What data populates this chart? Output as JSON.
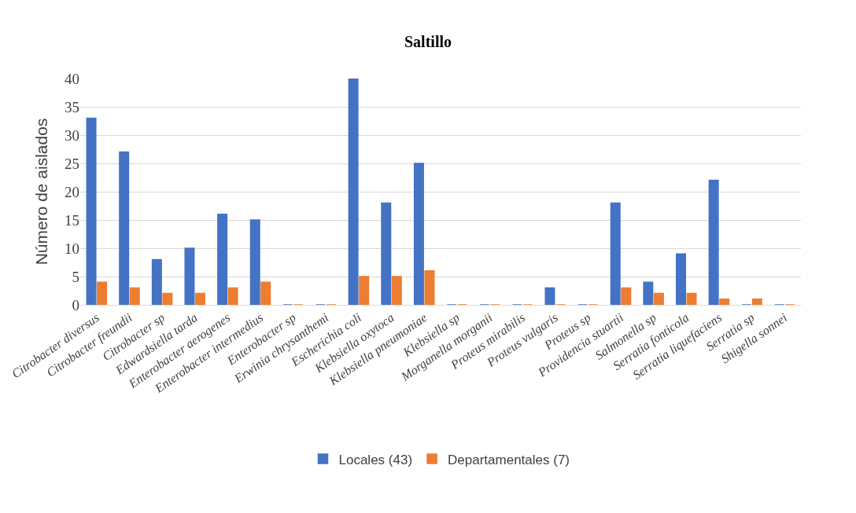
{
  "chart_data": {
    "type": "bar",
    "title": "Saltillo",
    "ylabel": "Número de aislados",
    "categories": [
      "Citrobacter diversus",
      "Citrobacter freundii",
      "Citrobacter sp",
      "Edwardsiella tarda",
      "Enterobacter aerogenes",
      "Enterobacter intermedius",
      "Enterobacter sp",
      "Erwinia chrysanthemi",
      "Escherichia coli",
      "Klebsiella oxytoca",
      "Klebsiella pneumoniae",
      "Klebsiella sp",
      "Morganella morganii",
      "Proteus mirabilis",
      "Proteus vulgaris",
      "Proteus sp",
      "Providencia stuartii",
      "Salmonella sp",
      "Serratia fonticola",
      "Serratia liquefaciens",
      "Serratia sp",
      "Shigella sonnei"
    ],
    "series": [
      {
        "name": "Locales (43)",
        "color": "#4472c4",
        "values": [
          33,
          27,
          8,
          10,
          16,
          15,
          0,
          0,
          40,
          18,
          25,
          0,
          0,
          0,
          3,
          0,
          18,
          4,
          9,
          22,
          0,
          0
        ]
      },
      {
        "name": "Departamentales (7)",
        "color": "#ed7d31",
        "values": [
          4,
          3,
          2,
          2,
          3,
          4,
          0,
          0,
          5,
          5,
          6,
          0,
          0,
          0,
          0,
          0,
          3,
          2,
          2,
          1,
          1,
          0
        ]
      }
    ],
    "ylim": [
      0,
      40
    ],
    "yticks": [
      0,
      5,
      10,
      15,
      20,
      25,
      30,
      35,
      40
    ],
    "grid": "y",
    "legend": "bottom"
  }
}
